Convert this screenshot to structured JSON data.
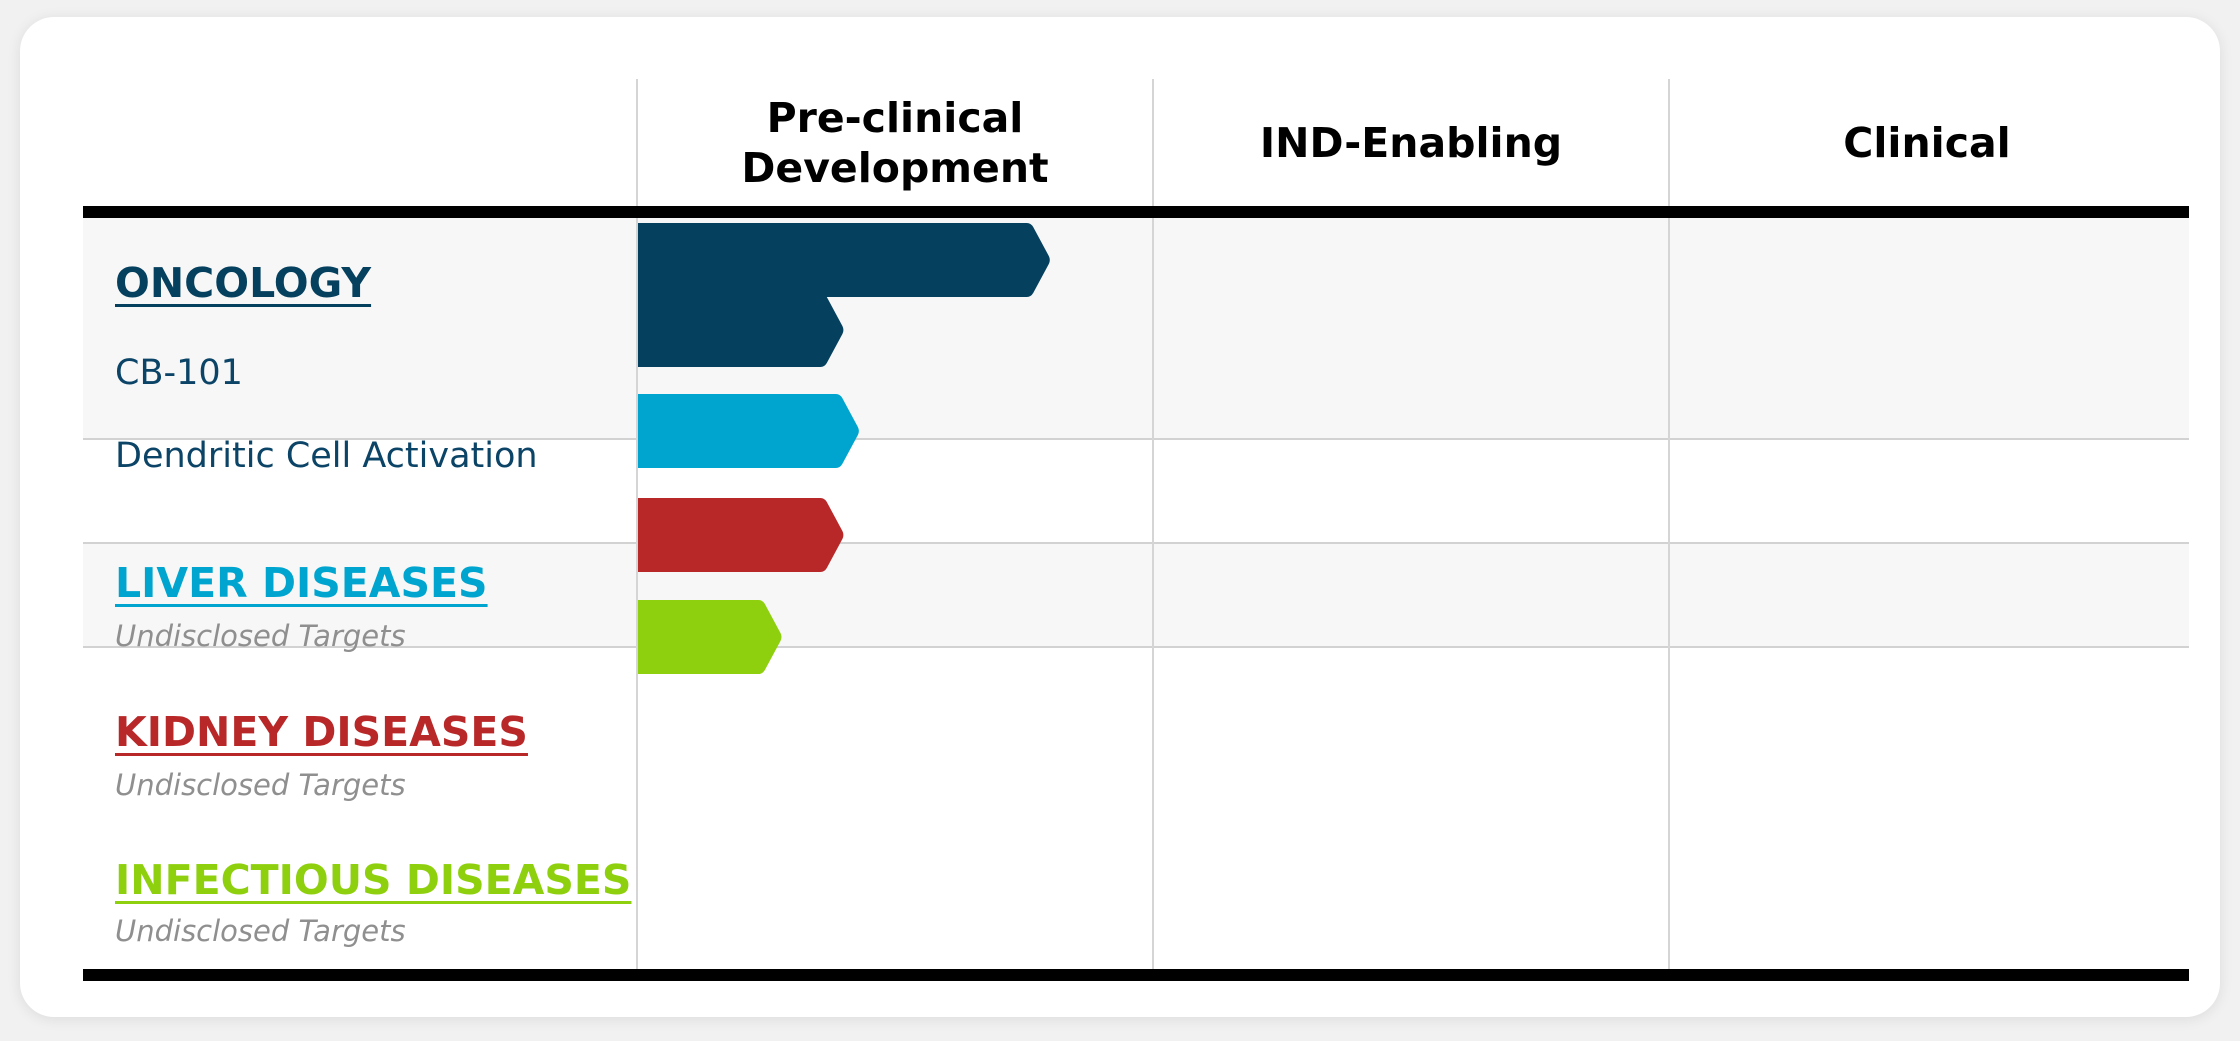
{
  "chart_data": {
    "type": "bar",
    "orientation": "horizontal",
    "title": "",
    "phases": [
      "Pre-clinical\nDevelopment",
      "IND-Enabling",
      "Clinical"
    ],
    "xlim": [
      0,
      3
    ],
    "grid": true,
    "categories": [
      {
        "name": "ONCOLOGY",
        "color": "#05405e",
        "programs": [
          {
            "label": "CB-101",
            "progress": 0.8
          },
          {
            "label": "Dendritic Cell Activation",
            "progress": 0.4
          }
        ]
      },
      {
        "name": "LIVER DISEASES",
        "color": "#00a5cf",
        "subtitle": "Undisclosed Targets",
        "programs": [
          {
            "label": "",
            "progress": 0.43
          }
        ]
      },
      {
        "name": "KIDNEY DISEASES",
        "color": "#b82829",
        "subtitle": "Undisclosed Targets",
        "programs": [
          {
            "label": "",
            "progress": 0.4
          }
        ]
      },
      {
        "name": "INFECTIOUS DISEASES",
        "color": "#8ed00e",
        "subtitle": "Undisclosed Targets",
        "programs": [
          {
            "label": "",
            "progress": 0.28
          }
        ]
      }
    ]
  }
}
